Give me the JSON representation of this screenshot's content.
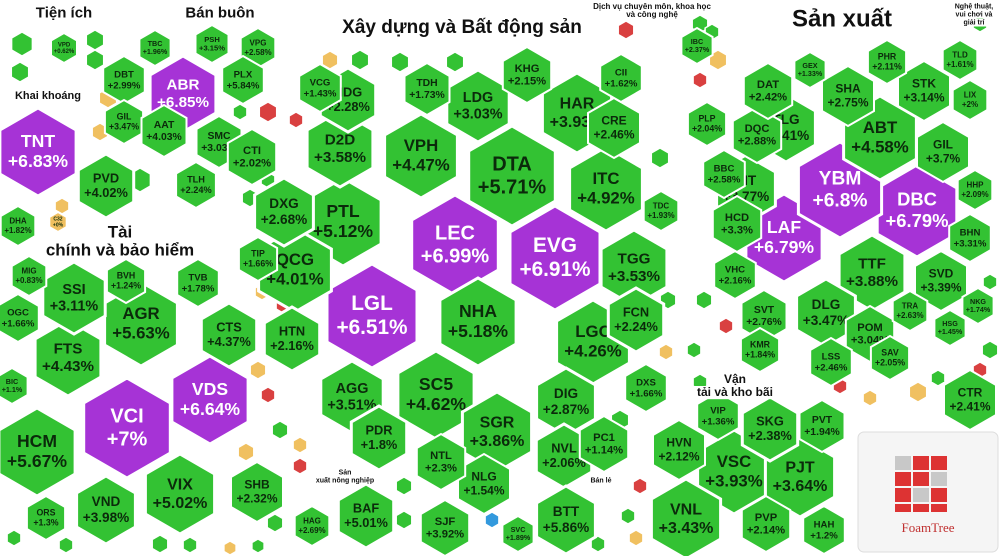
{
  "chart_data": {
    "type": "treemap",
    "colors": {
      "up": "#33c233",
      "ceiling": "#a633d6",
      "reference": "#f0c060",
      "down": "#d94040",
      "border": "#ffffff"
    },
    "groups": [
      {
        "name": "Tiện ích",
        "tiles": [
          {
            "code": "VPD",
            "change": "+0.62%"
          }
        ]
      },
      {
        "name": "Bán buôn",
        "tiles": [
          {
            "code": "ABR",
            "change": "+6.85%"
          },
          {
            "code": "TBC",
            "change": "+1.96%"
          },
          {
            "code": "PSH",
            "change": "+3.15%"
          },
          {
            "code": "VPG",
            "change": "+2.58%"
          },
          {
            "code": "DBT",
            "change": "+2.99%"
          },
          {
            "code": "PLX",
            "change": "+5.84%"
          },
          {
            "code": "GIL",
            "change": "+3.47%"
          },
          {
            "code": "AAT",
            "change": "+4.03%"
          },
          {
            "code": "SMC",
            "change": "+3.03%"
          },
          {
            "code": "TLH",
            "change": "+2.24%"
          }
        ]
      },
      {
        "name": "Khai khoáng",
        "tiles": [
          {
            "code": "TNT",
            "change": "+6.83%"
          },
          {
            "code": "PVD",
            "change": "+4.02%"
          },
          {
            "code": "DHA",
            "change": "+1.82%"
          },
          {
            "code": "C32",
            "change": "+0%"
          }
        ]
      },
      {
        "name": "Xây dựng và Bất động sản",
        "tiles": [
          {
            "code": "LEC",
            "change": "+6.99%"
          },
          {
            "code": "EVG",
            "change": "+6.91%"
          },
          {
            "code": "LGL",
            "change": "+6.51%"
          },
          {
            "code": "DTA",
            "change": "+5.71%"
          },
          {
            "code": "NHA",
            "change": "+5.18%"
          },
          {
            "code": "PTL",
            "change": "+5.12%"
          },
          {
            "code": "ITC",
            "change": "+4.92%"
          },
          {
            "code": "SC5",
            "change": "+4.62%"
          },
          {
            "code": "VPH",
            "change": "+4.47%"
          },
          {
            "code": "LGC",
            "change": "+4.26%"
          },
          {
            "code": "QCG",
            "change": "+4.01%"
          },
          {
            "code": "HAR",
            "change": "+3.93%"
          },
          {
            "code": "SGR",
            "change": "+3.86%"
          },
          {
            "code": "D2D",
            "change": "+3.58%"
          },
          {
            "code": "TGG",
            "change": "+3.53%"
          },
          {
            "code": "AGG",
            "change": "+3.51%"
          },
          {
            "code": "LDG",
            "change": "+3.03%"
          },
          {
            "code": "DIG",
            "change": "+2.87%"
          },
          {
            "code": "DXG",
            "change": "+2.68%"
          },
          {
            "code": "CRE",
            "change": "+2.46%"
          },
          {
            "code": "HDG",
            "change": "+2.28%"
          },
          {
            "code": "FCN",
            "change": "+2.24%"
          },
          {
            "code": "HTN",
            "change": "+2.16%"
          },
          {
            "code": "KHG",
            "change": "+2.15%"
          },
          {
            "code": "NVL",
            "change": "+2.06%"
          },
          {
            "code": "CTI",
            "change": "+2.02%"
          },
          {
            "code": "PDR",
            "change": "+1.8%"
          },
          {
            "code": "TDH",
            "change": "+1.73%"
          },
          {
            "code": "DXS",
            "change": "+1.66%"
          },
          {
            "code": "TIP",
            "change": "+1.66%"
          },
          {
            "code": "CII",
            "change": "+1.62%"
          },
          {
            "code": "NLG",
            "change": "+1.54%"
          },
          {
            "code": "VCG",
            "change": "+1.43%"
          },
          {
            "code": "PC1",
            "change": "+1.14%"
          },
          {
            "code": "TDC",
            "change": "+1.93%"
          },
          {
            "code": "NTL",
            "change": "+2.3%"
          }
        ]
      },
      {
        "name": "Dịch vụ chuyên môn, khoa học và công nghệ",
        "tiles": [
          {
            "code": "IBC",
            "change": "+2.37%"
          }
        ]
      },
      {
        "name": "Sản xuất",
        "tiles": [
          {
            "code": "LAF",
            "change": "+6.79%"
          },
          {
            "code": "DBC",
            "change": "+6.79%"
          },
          {
            "code": "YBM",
            "change": "+6.8%"
          },
          {
            "code": "ABT",
            "change": "+4.58%"
          },
          {
            "code": "TTF",
            "change": "+3.88%"
          },
          {
            "code": "FIT",
            "change": "+3.77%"
          },
          {
            "code": "GIL",
            "change": "+3.7%"
          },
          {
            "code": "DLG",
            "change": "+3.47%"
          },
          {
            "code": "TLG",
            "change": "+3.41%"
          },
          {
            "code": "SVD",
            "change": "+3.39%"
          },
          {
            "code": "HCD",
            "change": "+3.3%"
          },
          {
            "code": "STK",
            "change": "+3.14%"
          },
          {
            "code": "POM",
            "change": "+3.04%"
          },
          {
            "code": "DQC",
            "change": "+2.88%"
          },
          {
            "code": "SHA",
            "change": "+2.75%"
          },
          {
            "code": "SVT",
            "change": "+2.76%"
          },
          {
            "code": "BBC",
            "change": "+2.58%"
          },
          {
            "code": "LSS",
            "change": "+2.46%"
          },
          {
            "code": "DAT",
            "change": "+2.42%"
          },
          {
            "code": "VHC",
            "change": "+2.16%"
          },
          {
            "code": "PHR",
            "change": "+2.11%"
          },
          {
            "code": "HHP",
            "change": "+2.09%"
          },
          {
            "code": "PLP",
            "change": "+2.04%"
          },
          {
            "code": "SAV",
            "change": "+2.05%"
          },
          {
            "code": "KMR",
            "change": "+1.84%"
          },
          {
            "code": "TLD",
            "change": "+1.61%"
          },
          {
            "code": "HSG",
            "change": "+1.45%"
          },
          {
            "code": "LIX",
            "change": "+2%"
          },
          {
            "code": "BHN",
            "change": "+3.31%"
          },
          {
            "code": "TRA",
            "change": "+2.63%"
          },
          {
            "code": "NKG",
            "change": "+1.74%"
          },
          {
            "code": "GEX",
            "change": "+1.33%"
          }
        ]
      },
      {
        "name": "Tài chính và bảo hiểm",
        "tiles": [
          {
            "code": "VCI",
            "change": "+7%"
          },
          {
            "code": "VDS",
            "change": "+6.64%"
          },
          {
            "code": "HCM",
            "change": "+5.67%"
          },
          {
            "code": "AGR",
            "change": "+5.63%"
          },
          {
            "code": "VIX",
            "change": "+5.02%"
          },
          {
            "code": "FTS",
            "change": "+4.43%"
          },
          {
            "code": "CTS",
            "change": "+4.37%"
          },
          {
            "code": "VND",
            "change": "+3.98%"
          },
          {
            "code": "SSI",
            "change": "+3.11%"
          },
          {
            "code": "SHB",
            "change": "+2.32%"
          },
          {
            "code": "TVB",
            "change": "+1.78%"
          },
          {
            "code": "OGC",
            "change": "+1.66%"
          },
          {
            "code": "BVH",
            "change": "+1.24%"
          },
          {
            "code": "BIC",
            "change": "+1.1%"
          },
          {
            "code": "ORS",
            "change": "+1.3%"
          },
          {
            "code": "MIG",
            "change": "+0.83%"
          }
        ]
      },
      {
        "name": "Vận tải và kho bãi",
        "tiles": [
          {
            "code": "VSC",
            "change": "+3.93%"
          },
          {
            "code": "PJT",
            "change": "+3.64%"
          },
          {
            "code": "VNL",
            "change": "+3.43%"
          },
          {
            "code": "SKG",
            "change": "+2.38%"
          },
          {
            "code": "HVN",
            "change": "+2.12%"
          },
          {
            "code": "PVP",
            "change": "+2.14%"
          },
          {
            "code": "PVT",
            "change": "+1.94%"
          },
          {
            "code": "VIP",
            "change": "+1.36%"
          },
          {
            "code": "HAH",
            "change": "+1.2%"
          }
        ]
      },
      {
        "name": "Sản xuất nông nghiệp",
        "tiles": [
          {
            "code": "BAF",
            "change": "+5.01%"
          },
          {
            "code": "HAG",
            "change": "+2.69%"
          }
        ]
      },
      {
        "name": "Bán lẻ",
        "tiles": [
          {
            "code": "BTT",
            "change": "+5.86%"
          },
          {
            "code": "SJF",
            "change": "+3.92%"
          },
          {
            "code": "SVC",
            "change": "+1.89%"
          }
        ]
      },
      {
        "name": "Nghệ thuật, vui chơi và giải trí",
        "tiles": [
          {
            "code": "CTR",
            "change": "+2.41%"
          }
        ]
      }
    ],
    "logo_text": "FoamTree"
  }
}
